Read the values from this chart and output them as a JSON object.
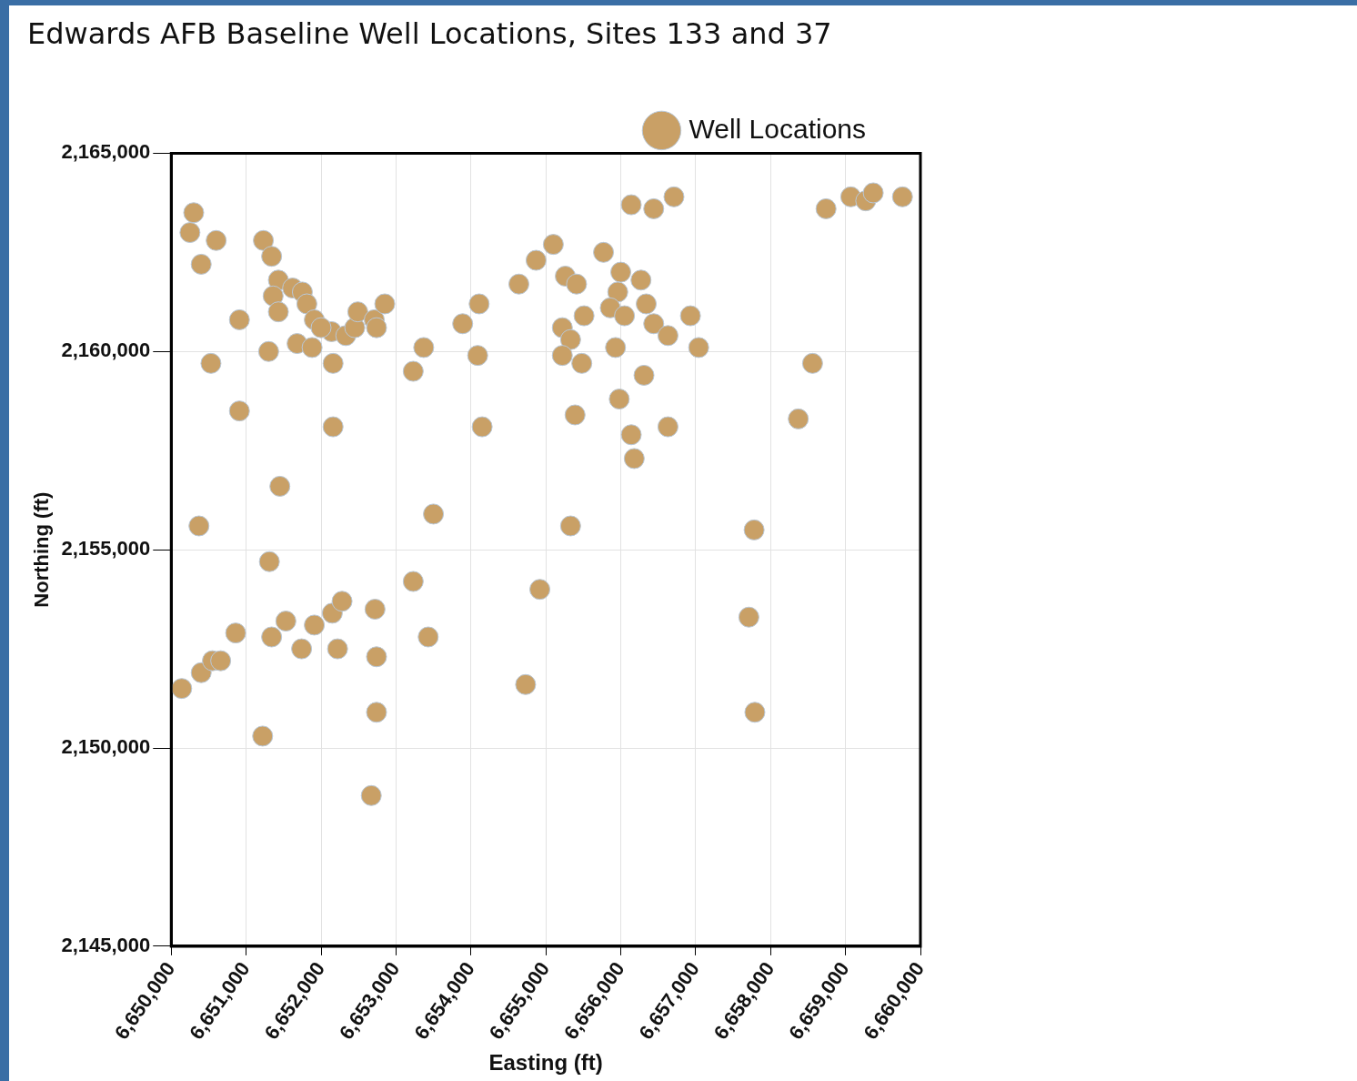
{
  "chart_data": {
    "type": "scatter",
    "title": "Edwards AFB Baseline Well Locations, Sites 133 and 37",
    "xlabel": "Easting (ft)",
    "ylabel": "Northing (ft)",
    "xlim": [
      6650000,
      6660000
    ],
    "xticks": [
      {
        "value": 6650000,
        "label": "6,650,000"
      },
      {
        "value": 6651000,
        "label": "6,651,000"
      },
      {
        "value": 6652000,
        "label": "6,652,000"
      },
      {
        "value": 6653000,
        "label": "6,653,000"
      },
      {
        "value": 6654000,
        "label": "6,654,000"
      },
      {
        "value": 6655000,
        "label": "6,655,000"
      },
      {
        "value": 6656000,
        "label": "6,656,000"
      },
      {
        "value": 6657000,
        "label": "6,657,000"
      },
      {
        "value": 6658000,
        "label": "6,658,000"
      },
      {
        "value": 6659000,
        "label": "6,659,000"
      },
      {
        "value": 6660000,
        "label": "6,660,000"
      }
    ],
    "ylim": [
      2145000,
      2165000
    ],
    "yticks": [
      {
        "value": 2145000,
        "label": "2,145,000"
      },
      {
        "value": 2150000,
        "label": "2,150,000"
      },
      {
        "value": 2155000,
        "label": "2,155,000"
      },
      {
        "value": 2160000,
        "label": "2,160,000"
      },
      {
        "value": 2165000,
        "label": "2,165,000"
      }
    ],
    "grid": true,
    "legend": "top right",
    "marker": "circle",
    "series": [
      {
        "name": "Well Locations",
        "color": "#c9a066",
        "x": [
          6650300,
          6650250,
          6650600,
          6650400,
          6651230,
          6651340,
          6651430,
          6651360,
          6651430,
          6651620,
          6651750,
          6651810,
          6651910,
          6651680,
          6651300,
          6650910,
          6650530,
          6650910,
          6652160,
          6652160,
          6651880,
          6652140,
          6652330,
          6652450,
          6652490,
          6652710,
          6652740,
          6652850,
          6652000,
          6653230,
          6653370,
          6653890,
          6654110,
          6654090,
          6654150,
          6654640,
          6654870,
          6655100,
          6655260,
          6655410,
          6655220,
          6655330,
          6655220,
          6655480,
          6655510,
          6655390,
          6655770,
          6656000,
          6655960,
          6655860,
          6656050,
          6655930,
          6656270,
          6656340,
          6656440,
          6656630,
          6656930,
          6657040,
          6656310,
          6655980,
          6656140,
          6656180,
          6656630,
          6656140,
          6656440,
          6656710,
          6658740,
          6659070,
          6659270,
          6659370,
          6659760,
          6658560,
          6658370,
          6657780,
          6657710,
          6657790,
          6654920,
          6654730,
          6655330,
          6653500,
          6653430,
          6653230,
          6651450,
          6650370,
          6651310,
          6652720,
          6652740,
          6652740,
          6652670,
          6651220,
          6650860,
          6650140,
          6650400,
          6650550,
          6650660,
          6651340,
          6651530,
          6651740,
          6651910,
          6652150,
          6652280,
          6652220
        ],
        "values": [
          2163500,
          2163000,
          2162800,
          2162200,
          2162800,
          2162400,
          2161800,
          2161400,
          2161000,
          2161600,
          2161500,
          2161200,
          2160800,
          2160200,
          2160000,
          2160800,
          2159700,
          2158500,
          2158100,
          2159700,
          2160100,
          2160500,
          2160400,
          2160600,
          2161000,
          2160800,
          2160600,
          2161200,
          2160600,
          2159500,
          2160100,
          2160700,
          2161200,
          2159900,
          2158100,
          2161700,
          2162300,
          2162700,
          2161900,
          2161700,
          2160600,
          2160300,
          2159900,
          2159700,
          2160900,
          2158400,
          2162500,
          2162000,
          2161500,
          2161100,
          2160900,
          2160100,
          2161800,
          2161200,
          2160700,
          2160400,
          2160900,
          2160100,
          2159400,
          2158800,
          2157900,
          2157300,
          2158100,
          2163700,
          2163600,
          2163900,
          2163600,
          2163900,
          2163800,
          2164000,
          2163900,
          2159700,
          2158300,
          2155500,
          2153300,
          2150900,
          2154000,
          2151600,
          2155600,
          2155900,
          2152800,
          2154200,
          2156600,
          2155600,
          2154700,
          2153500,
          2152300,
          2150900,
          2148800,
          2150300,
          2152900,
          2151500,
          2151900,
          2152200,
          2152200,
          2152800,
          2153200,
          2152500,
          2153100,
          2153400,
          2153700,
          2152500
        ]
      }
    ]
  }
}
